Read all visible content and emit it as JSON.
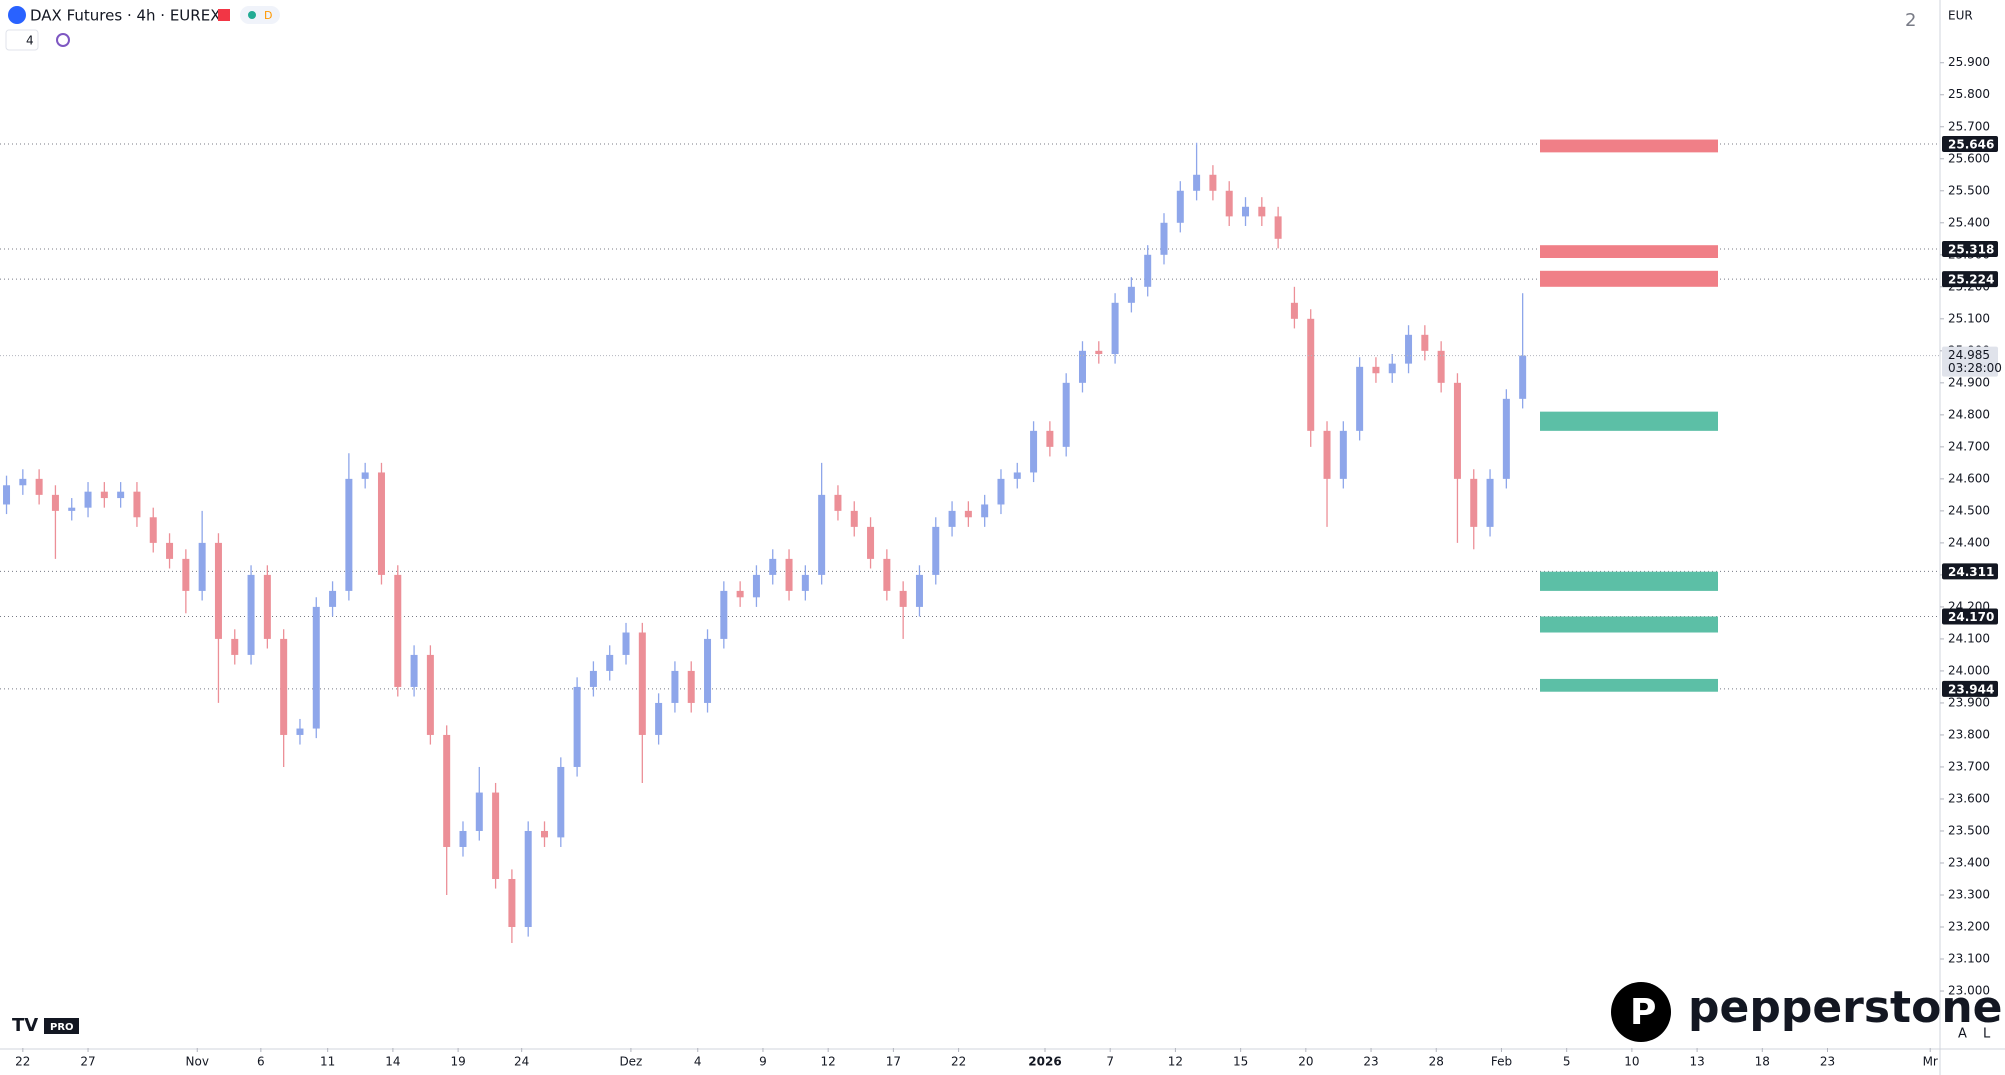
{
  "header": {
    "symbol": "DAX Futures · 4h · EUREX",
    "badge": "D",
    "indicator_count": "4",
    "layout_number": "2",
    "currency": "EUR",
    "brand": "pepperstone",
    "tv_badge": "PRO",
    "auto": "A",
    "log": "L"
  },
  "chart_data": {
    "type": "candlestick",
    "xlim": [
      -0.4,
      118.6
    ],
    "xticks": [
      {
        "value": 1,
        "label": "22"
      },
      {
        "value": 5,
        "label": "27"
      },
      {
        "value": 11.7,
        "label": "Nov"
      },
      {
        "value": 15.6,
        "label": "6"
      },
      {
        "value": 19.7,
        "label": "11"
      },
      {
        "value": 23.7,
        "label": "14"
      },
      {
        "value": 27.7,
        "label": "19"
      },
      {
        "value": 31.6,
        "label": "24"
      },
      {
        "value": 38.3,
        "label": "Dez"
      },
      {
        "value": 42.4,
        "label": "4"
      },
      {
        "value": 46.4,
        "label": "9"
      },
      {
        "value": 50.4,
        "label": "12"
      },
      {
        "value": 54.4,
        "label": "17"
      },
      {
        "value": 58.4,
        "label": "22"
      },
      {
        "value": 63.7,
        "label": "2026"
      },
      {
        "value": 67.7,
        "label": "7"
      },
      {
        "value": 71.7,
        "label": "12"
      },
      {
        "value": 75.7,
        "label": "15"
      },
      {
        "value": 79.7,
        "label": "20"
      },
      {
        "value": 83.7,
        "label": "23"
      },
      {
        "value": 87.7,
        "label": "28"
      },
      {
        "value": 91.7,
        "label": "Feb"
      },
      {
        "value": 95.7,
        "label": "5"
      },
      {
        "value": 99.7,
        "label": "10"
      },
      {
        "value": 103.7,
        "label": "13"
      },
      {
        "value": 107.7,
        "label": "18"
      },
      {
        "value": 111.7,
        "label": "23"
      },
      {
        "value": 118,
        "label": "Mr"
      }
    ],
    "ylim": [
      22822,
      26096
    ],
    "yticks": [
      {
        "value": 23000,
        "label": "23.000"
      },
      {
        "value": 23100,
        "label": "23.100"
      },
      {
        "value": 23200,
        "label": "23.200"
      },
      {
        "value": 23300,
        "label": "23.300"
      },
      {
        "value": 23400,
        "label": "23.400"
      },
      {
        "value": 23500,
        "label": "23.500"
      },
      {
        "value": 23600,
        "label": "23.600"
      },
      {
        "value": 23700,
        "label": "23.700"
      },
      {
        "value": 23800,
        "label": "23.800"
      },
      {
        "value": 23900,
        "label": "23.900"
      },
      {
        "value": 24000,
        "label": "24.000"
      },
      {
        "value": 24100,
        "label": "24.100"
      },
      {
        "value": 24200,
        "label": "24.200"
      },
      {
        "value": 24300,
        "label": "24.300"
      },
      {
        "value": 24400,
        "label": "24.400"
      },
      {
        "value": 24500,
        "label": "24.500"
      },
      {
        "value": 24600,
        "label": "24.600"
      },
      {
        "value": 24700,
        "label": "24.700"
      },
      {
        "value": 24800,
        "label": "24.800"
      },
      {
        "value": 24900,
        "label": "24.900"
      },
      {
        "value": 25000,
        "label": "25.000"
      },
      {
        "value": 25100,
        "label": "25.100"
      },
      {
        "value": 25200,
        "label": "25.200"
      },
      {
        "value": 25300,
        "label": "25.300"
      },
      {
        "value": 25400,
        "label": "25.400"
      },
      {
        "value": 25500,
        "label": "25.500"
      },
      {
        "value": 25600,
        "label": "25.600"
      },
      {
        "value": 25700,
        "label": "25.700"
      },
      {
        "value": 25800,
        "label": "25.800"
      },
      {
        "value": 25900,
        "label": "25.900"
      }
    ],
    "up_color": "#8ea6ea",
    "down_color": "#ec8f97",
    "open": [
      24520,
      24580,
      24600,
      24550,
      24500,
      24510,
      24560,
      24540,
      24560,
      24480,
      24400,
      24350,
      24250,
      24400,
      24100,
      24050,
      24300,
      24100,
      23800,
      23820,
      24200,
      24250,
      24600,
      24620,
      24300,
      23950,
      24050,
      23800,
      23450,
      23500,
      23620,
      23350,
      23200,
      23500,
      23480,
      23700,
      23950,
      24000,
      24050,
      24120,
      23800,
      23900,
      24000,
      23900,
      24100,
      24250,
      24230,
      24300,
      24350,
      24250,
      24300,
      24550,
      24500,
      24450,
      24350,
      24250,
      24200,
      24300,
      24450,
      24500,
      24480,
      24520,
      24600,
      24620,
      24750,
      24700,
      24900,
      25000,
      24990,
      25150,
      25200,
      25300,
      25400,
      25500,
      25550,
      25500,
      25420,
      25450,
      25420,
      25150,
      25100,
      24750,
      24600,
      24750,
      24950,
      24930,
      24960,
      25050,
      25000,
      24900,
      24600,
      24450,
      24600,
      24850
    ],
    "high": [
      24610,
      24630,
      24630,
      24580,
      24540,
      24590,
      24590,
      24590,
      24590,
      24510,
      24430,
      24380,
      24500,
      24430,
      24130,
      24330,
      24330,
      24130,
      23850,
      24230,
      24280,
      24680,
      24650,
      24650,
      24330,
      24080,
      24080,
      23830,
      23530,
      23700,
      23650,
      23380,
      23530,
      23530,
      23730,
      23980,
      24030,
      24080,
      24150,
      24150,
      23930,
      24030,
      24030,
      24130,
      24280,
      24280,
      24330,
      24380,
      24380,
      24330,
      24650,
      24580,
      24530,
      24480,
      24380,
      24280,
      24330,
      24480,
      24530,
      24530,
      24550,
      24630,
      24650,
      24780,
      24780,
      24930,
      25030,
      25030,
      25180,
      25230,
      25330,
      25430,
      25530,
      25650,
      25580,
      25530,
      25480,
      25480,
      25450,
      25200,
      25130,
      24780,
      24780,
      24980,
      24980,
      24990,
      25080,
      25080,
      25030,
      24930,
      24630,
      24630,
      24880,
      25180
    ],
    "low": [
      24490,
      24550,
      24520,
      24350,
      24470,
      24480,
      24510,
      24510,
      24450,
      24370,
      24320,
      24180,
      24220,
      23900,
      24020,
      24020,
      24070,
      23700,
      23770,
      23790,
      24170,
      24220,
      24570,
      24270,
      23920,
      23920,
      23770,
      23300,
      23420,
      23470,
      23320,
      23150,
      23170,
      23450,
      23450,
      23670,
      23920,
      23970,
      24020,
      23650,
      23770,
      23870,
      23870,
      23870,
      24070,
      24200,
      24200,
      24270,
      24220,
      24220,
      24270,
      24470,
      24420,
      24320,
      24220,
      24100,
      24170,
      24270,
      24420,
      24450,
      24450,
      24490,
      24570,
      24590,
      24670,
      24670,
      24870,
      24960,
      24960,
      25120,
      25170,
      25270,
      25370,
      25470,
      25470,
      25390,
      25390,
      25390,
      25320,
      25070,
      24700,
      24450,
      24570,
      24720,
      24900,
      24900,
      24930,
      24970,
      24870,
      24400,
      24380,
      24420,
      24570,
      24820
    ],
    "close": [
      24580,
      24600,
      24550,
      24500,
      24510,
      24560,
      24540,
      24560,
      24480,
      24400,
      24350,
      24250,
      24400,
      24100,
      24050,
      24300,
      24100,
      23800,
      23820,
      24200,
      24250,
      24600,
      24620,
      24300,
      23950,
      24050,
      23800,
      23450,
      23500,
      23620,
      23350,
      23200,
      23500,
      23480,
      23700,
      23950,
      24000,
      24050,
      24120,
      23800,
      23900,
      24000,
      23900,
      24100,
      24250,
      24230,
      24300,
      24350,
      24250,
      24300,
      24550,
      24500,
      24450,
      24350,
      24250,
      24200,
      24300,
      24450,
      24500,
      24480,
      24520,
      24600,
      24620,
      24750,
      24700,
      24900,
      25000,
      24990,
      25150,
      25200,
      25300,
      25400,
      25500,
      25550,
      25500,
      25420,
      25450,
      25420,
      25350,
      25100,
      24750,
      24600,
      24750,
      24950,
      24930,
      24960,
      25050,
      25000,
      24900,
      24600,
      24450,
      24600,
      24850,
      24985
    ],
    "zones": [
      {
        "low": 25620,
        "high": 25660,
        "color": "#f07f87"
      },
      {
        "low": 25290,
        "high": 25330,
        "color": "#f07f87"
      },
      {
        "low": 25200,
        "high": 25250,
        "color": "#f07f87"
      },
      {
        "low": 24750,
        "high": 24810,
        "color": "#5cbfa6"
      },
      {
        "low": 24250,
        "high": 24310,
        "color": "#5cbfa6"
      },
      {
        "low": 24120,
        "high": 24170,
        "color": "#5cbfa6"
      },
      {
        "low": 23935,
        "high": 23975,
        "color": "#5cbfa6"
      }
    ],
    "levels": [
      {
        "value": 25646,
        "label": "25.646"
      },
      {
        "value": 25318,
        "label": "25.318"
      },
      {
        "value": 25224,
        "label": "25.224"
      },
      {
        "value": 24311,
        "label": "24.311"
      },
      {
        "value": 24170,
        "label": "24.170"
      },
      {
        "value": 23944,
        "label": "23.944"
      }
    ],
    "last_price": {
      "value": 24985,
      "label": "24.985",
      "countdown": "03:28:00"
    }
  }
}
